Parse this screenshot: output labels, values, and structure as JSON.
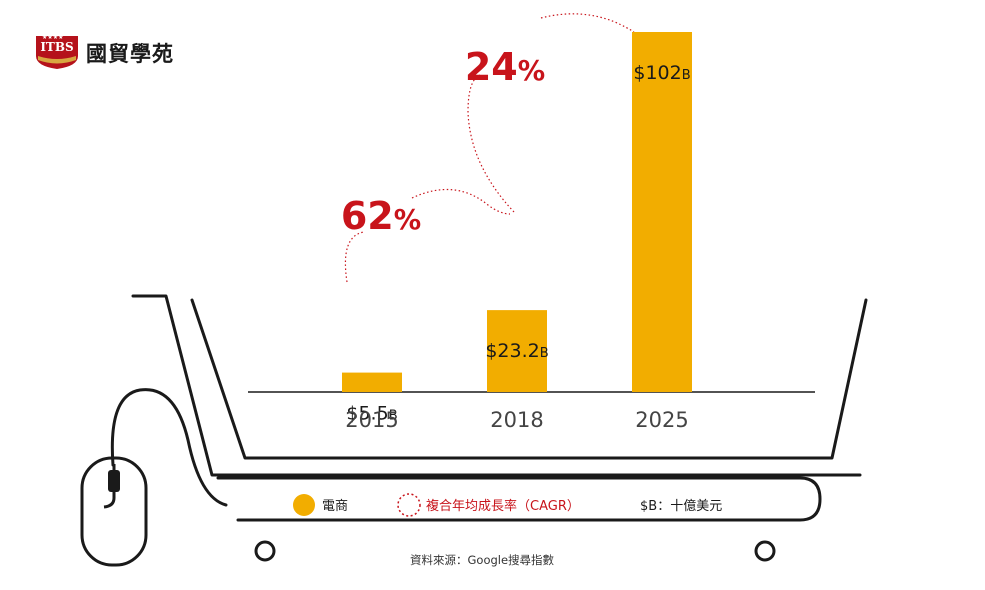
{
  "logo": {
    "abbr": "ITBS",
    "stars": "★★★★",
    "name": "國貿學苑"
  },
  "chart_data": {
    "type": "bar",
    "categories": [
      "2015",
      "2018",
      "2025"
    ],
    "values": [
      5.5,
      23.2,
      102
    ],
    "value_labels": [
      "$5.5",
      "$23.2",
      "$102"
    ],
    "value_unit": "B",
    "bar_color": "#f2ad00",
    "series": [
      {
        "name": "電商",
        "values": [
          5.5,
          23.2,
          102
        ]
      }
    ],
    "cagr": [
      {
        "from": "2015",
        "to": "2018",
        "value": "62",
        "unit": "%"
      },
      {
        "from": "2018",
        "to": "2025",
        "value": "24",
        "unit": "%"
      }
    ],
    "cagr_color": "#c8141b",
    "ylim": [
      0,
      102
    ],
    "grid": false
  },
  "legend": {
    "series_label": "電商",
    "cagr_label": "複合年均成長率（CAGR）",
    "unit_label": "$B：十億美元"
  },
  "source": "資料來源：Google搜尋指數"
}
